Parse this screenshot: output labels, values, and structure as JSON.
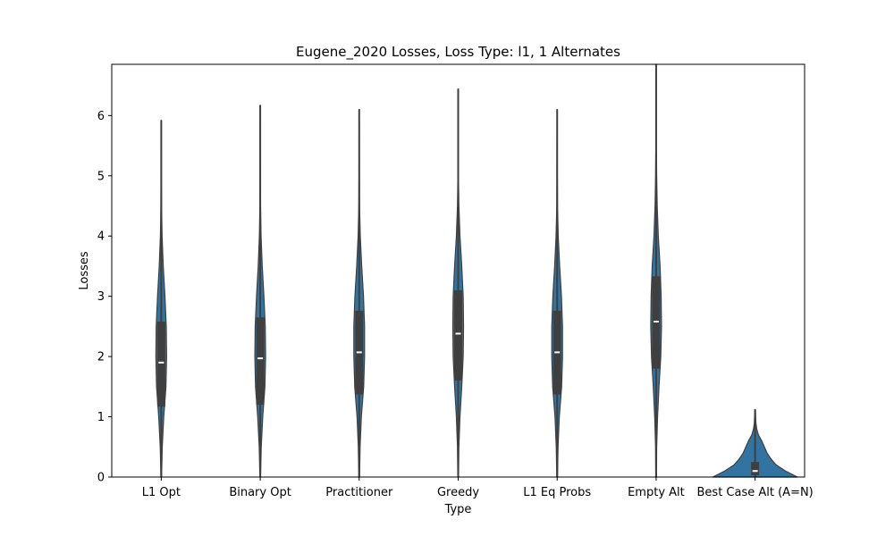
{
  "chart_data": {
    "type": "violin",
    "title": "Eugene_2020 Losses, Loss Type: l1, 1 Alternates",
    "xlabel": "Type",
    "ylabel": "Losses",
    "ylim": [
      0,
      6.85
    ],
    "yticks": [
      0,
      1,
      2,
      3,
      4,
      5,
      6
    ],
    "categories": [
      "L1 Opt",
      "Binary Opt",
      "Practitioner",
      "Greedy",
      "L1 Eq Probs",
      "Empty Alt",
      "Best Case Alt (A=N)"
    ],
    "violin_color": "#3274a1",
    "box_color": "#3f3f3f",
    "series": [
      {
        "name": "L1 Opt",
        "min": 0,
        "q1": 1.17,
        "median": 1.9,
        "q3": 2.58,
        "max": 5.92,
        "density": [
          [
            0,
            0.02
          ],
          [
            0.5,
            0.06
          ],
          [
            1.0,
            0.15
          ],
          [
            1.5,
            0.28
          ],
          [
            2.0,
            0.32
          ],
          [
            2.5,
            0.3
          ],
          [
            3.0,
            0.22
          ],
          [
            3.5,
            0.12
          ],
          [
            4.0,
            0.05
          ],
          [
            4.5,
            0.02
          ],
          [
            5.0,
            0.01
          ],
          [
            5.92,
            0.005
          ]
        ]
      },
      {
        "name": "Binary Opt",
        "min": 0,
        "q1": 1.2,
        "median": 1.97,
        "q3": 2.65,
        "max": 6.17,
        "density": [
          [
            0,
            0.02
          ],
          [
            0.5,
            0.06
          ],
          [
            1.0,
            0.15
          ],
          [
            1.5,
            0.28
          ],
          [
            2.0,
            0.32
          ],
          [
            2.5,
            0.3
          ],
          [
            3.0,
            0.22
          ],
          [
            3.5,
            0.12
          ],
          [
            4.0,
            0.05
          ],
          [
            4.5,
            0.02
          ],
          [
            5.0,
            0.01
          ],
          [
            6.17,
            0.005
          ]
        ]
      },
      {
        "name": "Practitioner",
        "min": 0,
        "q1": 1.37,
        "median": 2.07,
        "q3": 2.76,
        "max": 6.1,
        "density": [
          [
            0,
            0.02
          ],
          [
            0.5,
            0.05
          ],
          [
            1.0,
            0.12
          ],
          [
            1.5,
            0.25
          ],
          [
            2.0,
            0.3
          ],
          [
            2.5,
            0.3
          ],
          [
            3.0,
            0.24
          ],
          [
            3.5,
            0.14
          ],
          [
            4.0,
            0.06
          ],
          [
            4.5,
            0.02
          ],
          [
            5.0,
            0.01
          ],
          [
            6.1,
            0.005
          ]
        ]
      },
      {
        "name": "Greedy",
        "min": 0,
        "q1": 1.6,
        "median": 2.38,
        "q3": 3.1,
        "max": 6.44,
        "density": [
          [
            0,
            0.02
          ],
          [
            0.5,
            0.04
          ],
          [
            1.0,
            0.1
          ],
          [
            1.5,
            0.2
          ],
          [
            2.0,
            0.28
          ],
          [
            2.5,
            0.3
          ],
          [
            3.0,
            0.28
          ],
          [
            3.5,
            0.2
          ],
          [
            4.0,
            0.1
          ],
          [
            4.5,
            0.04
          ],
          [
            5.0,
            0.015
          ],
          [
            6.44,
            0.005
          ]
        ]
      },
      {
        "name": "L1 Eq Probs",
        "min": 0,
        "q1": 1.37,
        "median": 2.07,
        "q3": 2.76,
        "max": 6.1,
        "density": [
          [
            0,
            0.02
          ],
          [
            0.5,
            0.05
          ],
          [
            1.0,
            0.12
          ],
          [
            1.5,
            0.25
          ],
          [
            2.0,
            0.3
          ],
          [
            2.5,
            0.3
          ],
          [
            3.0,
            0.24
          ],
          [
            3.5,
            0.14
          ],
          [
            4.0,
            0.06
          ],
          [
            4.5,
            0.02
          ],
          [
            5.0,
            0.01
          ],
          [
            6.1,
            0.005
          ]
        ]
      },
      {
        "name": "Empty Alt",
        "min": 0,
        "q1": 1.8,
        "median": 2.58,
        "q3": 3.33,
        "max": 6.85,
        "density": [
          [
            0,
            0.02
          ],
          [
            0.5,
            0.03
          ],
          [
            1.0,
            0.08
          ],
          [
            1.5,
            0.16
          ],
          [
            2.0,
            0.26
          ],
          [
            2.5,
            0.3
          ],
          [
            3.0,
            0.28
          ],
          [
            3.5,
            0.22
          ],
          [
            4.0,
            0.12
          ],
          [
            4.5,
            0.06
          ],
          [
            5.0,
            0.03
          ],
          [
            5.5,
            0.015
          ],
          [
            6.85,
            0.005
          ]
        ]
      },
      {
        "name": "Best Case Alt (A=N)",
        "min": 0,
        "q1": 0.03,
        "median": 0.1,
        "q3": 0.25,
        "max": 1.12,
        "density": [
          [
            0,
            3.2
          ],
          [
            0.1,
            2.3
          ],
          [
            0.2,
            1.6
          ],
          [
            0.3,
            1.2
          ],
          [
            0.4,
            0.9
          ],
          [
            0.5,
            0.7
          ],
          [
            0.6,
            0.5
          ],
          [
            0.7,
            0.25
          ],
          [
            0.8,
            0.12
          ],
          [
            0.9,
            0.06
          ],
          [
            1.0,
            0.04
          ],
          [
            1.12,
            0.02
          ]
        ]
      }
    ]
  }
}
